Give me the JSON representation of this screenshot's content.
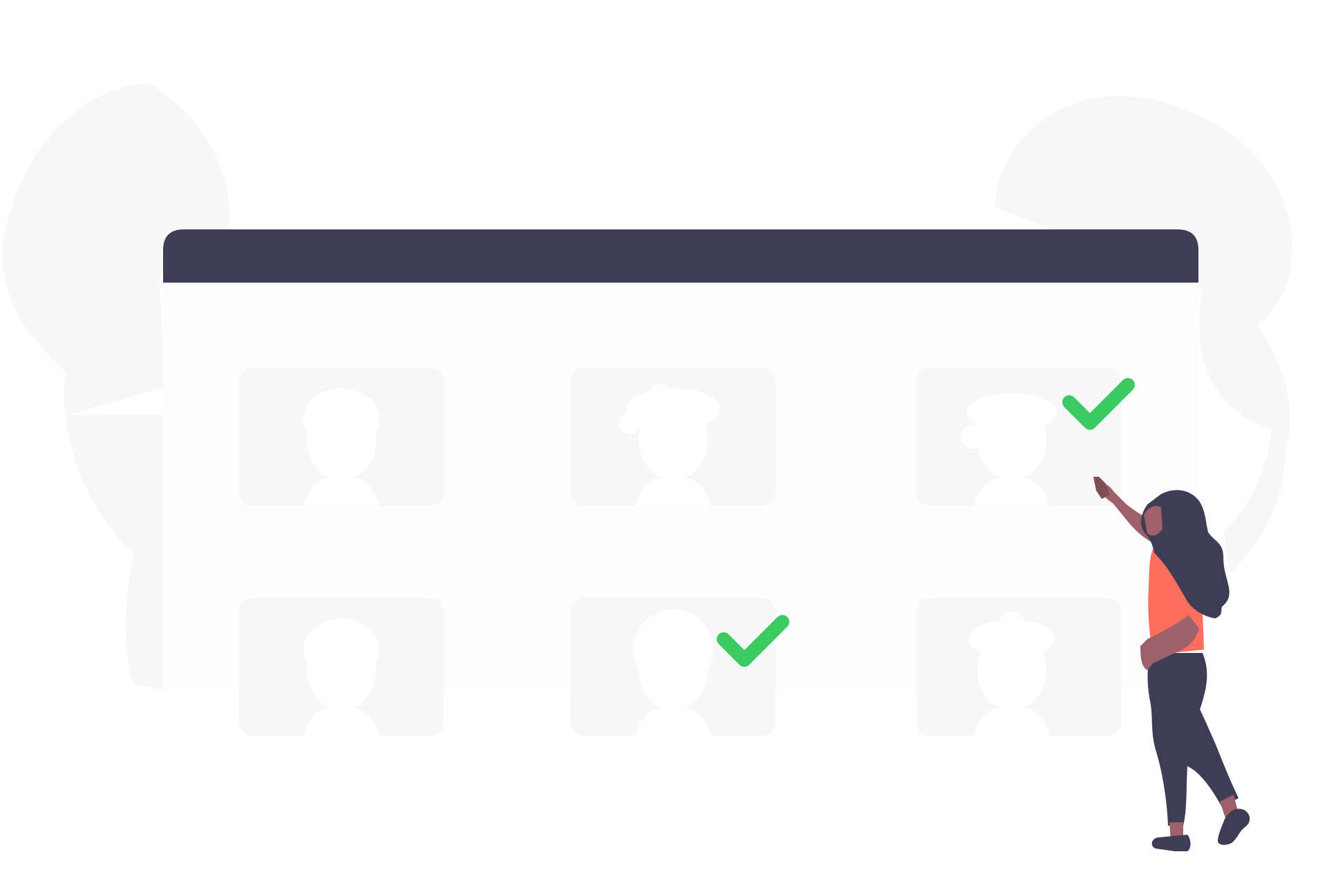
{
  "colors": {
    "background": "#ffffff",
    "background_blob": "#f7f7f7",
    "window_titlebar": "#3f3d56",
    "window_body": "#fdfdfd",
    "card": "#f7f7f7",
    "avatar_silhouette": "#ffffff",
    "check_accent": "#3ccb63",
    "shirt": "#fe6e5d",
    "hair_and_pants": "#3f3d56",
    "skin": "#9e616a",
    "skin_shadow": "#7e4d55"
  },
  "window": {
    "titlebar_icon": "none",
    "cards": [
      {
        "row": 1,
        "col": 1,
        "avatar": "person-silhouette-icon",
        "selected": false
      },
      {
        "row": 1,
        "col": 2,
        "avatar": "person-curly-hair-silhouette-icon",
        "selected": false
      },
      {
        "row": 1,
        "col": 3,
        "avatar": "person-wide-hair-silhouette-icon",
        "selected": true
      },
      {
        "row": 2,
        "col": 1,
        "avatar": "person-silhouette-icon",
        "selected": false
      },
      {
        "row": 2,
        "col": 2,
        "avatar": "person-round-hair-silhouette-icon",
        "selected": true
      },
      {
        "row": 2,
        "col": 3,
        "avatar": "person-bun-silhouette-icon",
        "selected": false
      }
    ]
  },
  "illustration": {
    "figure": "woman-pointing-at-selected-card",
    "check_icon": "checkmark-icon"
  }
}
